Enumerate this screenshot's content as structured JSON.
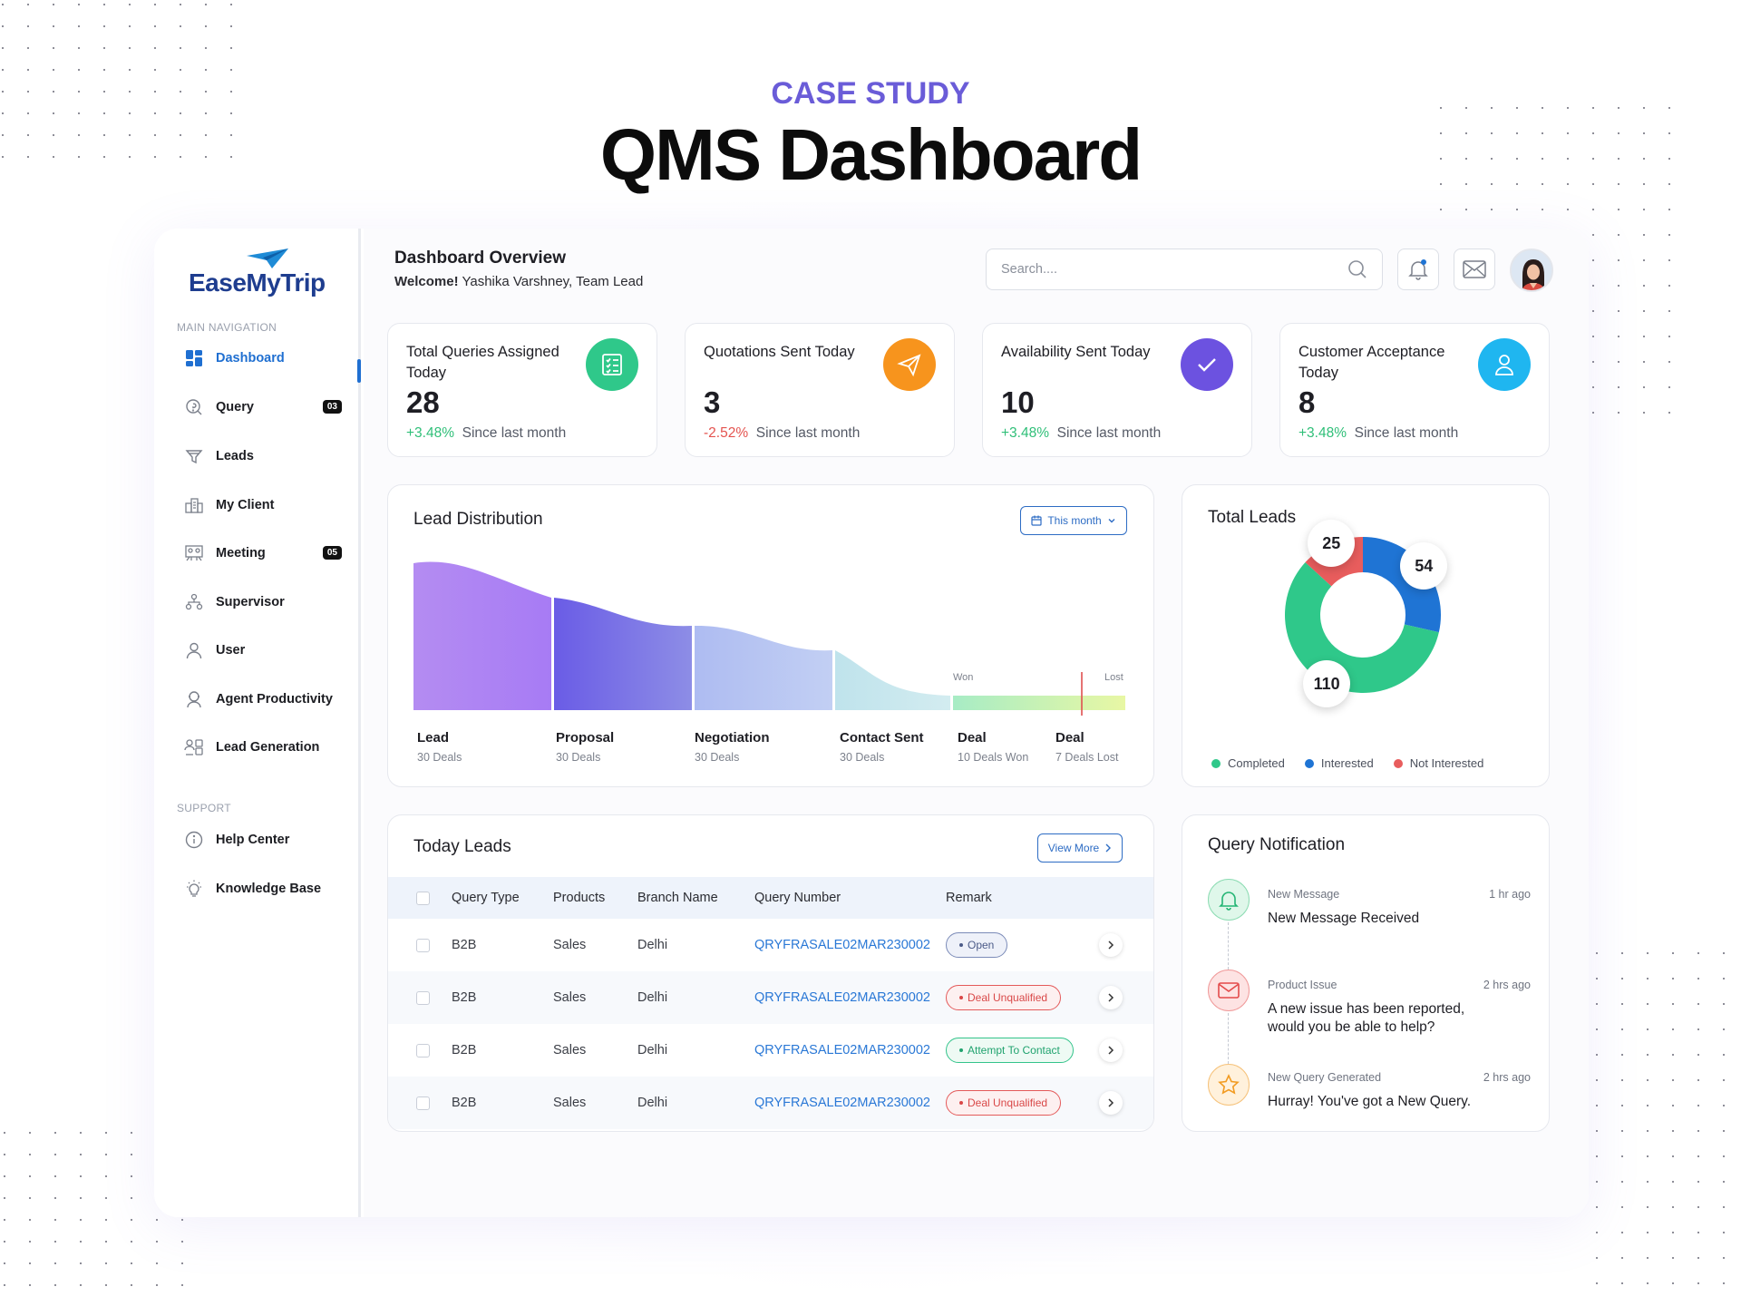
{
  "hero": {
    "kicker": "CASE STUDY",
    "title": "QMS Dashboard"
  },
  "sidebar": {
    "logo": "EaseMyTrip",
    "main_nav_label": "MAIN NAVIGATION",
    "support_label": "SUPPORT",
    "items": [
      {
        "label": "Dashboard",
        "icon": "dashboard-icon",
        "active": true
      },
      {
        "label": "Query",
        "icon": "query-icon",
        "badge": "03"
      },
      {
        "label": "Leads",
        "icon": "funnel-icon"
      },
      {
        "label": "My Client",
        "icon": "building-icon"
      },
      {
        "label": "Meeting",
        "icon": "meeting-icon",
        "badge": "05"
      },
      {
        "label": "Supervisor",
        "icon": "org-chart-icon"
      },
      {
        "label": "User",
        "icon": "user-icon"
      },
      {
        "label": "Agent Productivity",
        "icon": "agent-icon"
      },
      {
        "label": "Lead Generation",
        "icon": "lead-generation-icon"
      }
    ],
    "support_items": [
      {
        "label": "Help Center",
        "icon": "info-icon"
      },
      {
        "label": "Knowledge Base",
        "icon": "bulb-icon"
      }
    ]
  },
  "header": {
    "title": "Dashboard Overview",
    "welcome_label": "Welcome!",
    "welcome_user": "Yashika Varshney, Team Lead",
    "search_placeholder": "Search...."
  },
  "stats": [
    {
      "label": "Total Queries Assigned Today",
      "value": "28",
      "change": "+3.48%",
      "trend": "up",
      "since": "Since last month",
      "color": "#2fc88a",
      "icon": "checklist-icon"
    },
    {
      "label": "Quotations Sent Today",
      "value": "3",
      "change": "-2.52%",
      "trend": "down",
      "since": "Since last month",
      "color": "#f7941d",
      "icon": "paper-plane-icon"
    },
    {
      "label": "Availability Sent Today",
      "value": "10",
      "change": "+3.48%",
      "trend": "up",
      "since": "Since last month",
      "color": "#6c52e0",
      "icon": "check-icon"
    },
    {
      "label": "Customer Acceptance Today",
      "value": "8",
      "change": "+3.48%",
      "trend": "up",
      "since": "Since last month",
      "color": "#1fb6f0",
      "icon": "person-icon"
    }
  ],
  "lead_distribution": {
    "title": "Lead Distribution",
    "filter": "This month",
    "won_label": "Won",
    "lost_label": "Lost",
    "stages": [
      {
        "name": "Lead",
        "deals": "30 Deals"
      },
      {
        "name": "Proposal",
        "deals": "30 Deals"
      },
      {
        "name": "Negotiation",
        "deals": "30 Deals"
      },
      {
        "name": "Contact Sent",
        "deals": "30 Deals"
      },
      {
        "name": "Deal",
        "deals": "10 Deals Won"
      },
      {
        "name": "Deal",
        "deals": "7 Deals Lost"
      }
    ]
  },
  "total_leads": {
    "title": "Total Leads",
    "chart_data": {
      "type": "pie",
      "title": "Total Leads",
      "categories": [
        "Completed",
        "Interested",
        "Not Interested"
      ],
      "values": [
        110,
        54,
        25
      ],
      "colors": [
        "#2fc88a",
        "#1f74d4",
        "#e85d5d"
      ]
    },
    "legend": [
      "Completed",
      "Interested",
      "Not Interested"
    ]
  },
  "today_leads": {
    "title": "Today Leads",
    "view_more": "View More",
    "columns": [
      "Query Type",
      "Products",
      "Branch Name",
      "Query Number",
      "Remark"
    ],
    "rows": [
      {
        "type": "B2B",
        "product": "Sales",
        "branch": "Delhi",
        "number": "QRYFRASALE02MAR230002",
        "remark": "Open",
        "status": "open"
      },
      {
        "type": "B2B",
        "product": "Sales",
        "branch": "Delhi",
        "number": "QRYFRASALE02MAR230002",
        "remark": "Deal Unqualified",
        "status": "unq"
      },
      {
        "type": "B2B",
        "product": "Sales",
        "branch": "Delhi",
        "number": "QRYFRASALE02MAR230002",
        "remark": "Attempt To Contact",
        "status": "att"
      },
      {
        "type": "B2B",
        "product": "Sales",
        "branch": "Delhi",
        "number": "QRYFRASALE02MAR230002",
        "remark": "Deal Unqualified",
        "status": "unq"
      }
    ]
  },
  "notifications": {
    "title": "Query Notification",
    "items": [
      {
        "category": "New Message",
        "time": "1 hr ago",
        "message": "New Message Received",
        "icon": "bell-icon"
      },
      {
        "category": "Product Issue",
        "time": "2 hrs ago",
        "message": "A new issue has been reported, would you be able to help?",
        "icon": "mail-icon"
      },
      {
        "category": "New Query Generated",
        "time": "2 hrs ago",
        "message": "Hurray! You've got a New Query.",
        "icon": "star-icon"
      }
    ]
  }
}
